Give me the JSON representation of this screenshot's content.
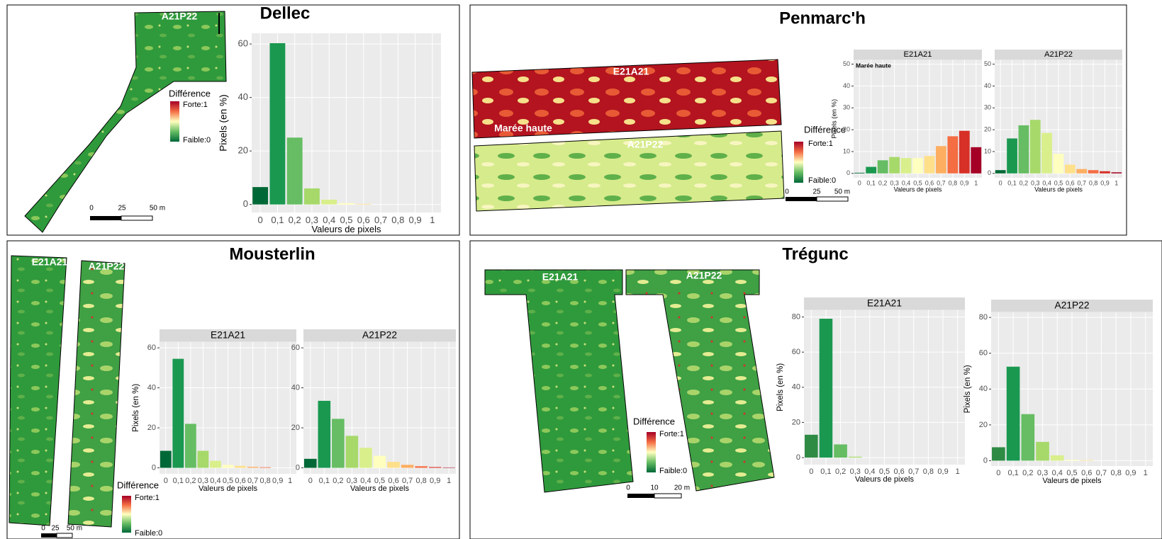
{
  "panels": [
    {
      "title": "Dellec",
      "maps": [
        {
          "label": "A21P22"
        }
      ],
      "legend": {
        "title": "Différence",
        "high": "Forte:1",
        "low": "Faible:0"
      },
      "scale": [
        "0",
        "25",
        "50 m"
      ]
    },
    {
      "title": "Penmarc'h",
      "maps": [
        {
          "label": "E21A21",
          "note": "Marée haute"
        },
        {
          "label": "A21P22"
        }
      ],
      "legend": {
        "title": "Différence",
        "high": "Forte:1",
        "low": "Faible:0"
      },
      "scale": [
        "0",
        "25",
        "50 m"
      ]
    },
    {
      "title": "Mousterlin",
      "maps": [
        {
          "label": "E21A21"
        },
        {
          "label": "A21P22"
        }
      ],
      "legend": {
        "title": "Différence",
        "high": "Forte:1",
        "low": "Faible:0"
      },
      "scale": [
        "0",
        "25",
        "50 m"
      ]
    },
    {
      "title": "Trégunc",
      "maps": [
        {
          "label": "E21A21"
        },
        {
          "label": "A21P22"
        }
      ],
      "legend": {
        "title": "Différence",
        "high": "Forte:1",
        "low": "Faible:0"
      },
      "scale": [
        "0",
        "10",
        "20 m"
      ]
    }
  ],
  "chart_data": [
    {
      "type": "bar",
      "x_label": "Valeurs de pixels",
      "y_label": "Pixels (en %)",
      "categories": [
        "0",
        "0,1",
        "0,2",
        "0,3",
        "0,4",
        "0,5",
        "0,6",
        "0,7",
        "0,8",
        "0,9",
        "1"
      ],
      "values": [
        6.5,
        60.3,
        25,
        6,
        1.8,
        0.5,
        0.2,
        0,
        0,
        0,
        0
      ],
      "colors": [
        "#006837",
        "#1a9850",
        "#66bd63",
        "#a6d96a",
        "#d9ef8b",
        "#ffffbf",
        "#fee08b",
        "#fdae61",
        "#f46d43",
        "#d73027",
        "#a50026"
      ],
      "ylim": [
        -3,
        64
      ],
      "yticks": [
        0,
        20,
        40,
        60
      ],
      "grid": true
    },
    {
      "type": "bar",
      "subtitle": "E21A21",
      "annotation": "Marée haute",
      "x_label": "Valeurs de pixels",
      "y_label": "Pixels (en %)",
      "categories": [
        "0",
        "0,1",
        "0,2",
        "0,3",
        "0,4",
        "0,5",
        "0,6",
        "0,7",
        "0,8",
        "0,9",
        "1"
      ],
      "values": [
        0.3,
        3,
        6,
        7.5,
        7,
        7,
        8,
        12.5,
        17,
        19.5,
        12
      ],
      "colors": [
        "#006837",
        "#1a9850",
        "#66bd63",
        "#a6d96a",
        "#d9ef8b",
        "#ffffbf",
        "#fee08b",
        "#fdae61",
        "#f46d43",
        "#d73027",
        "#a50026"
      ],
      "ylim": [
        -2,
        52
      ],
      "yticks": [
        0,
        10,
        20,
        30,
        40,
        50
      ],
      "grid": true
    },
    {
      "type": "bar",
      "subtitle": "A21P22",
      "x_label": "Valeurs de pixels",
      "categories": [
        "0",
        "0,1",
        "0,2",
        "0,3",
        "0,4",
        "0,5",
        "0,6",
        "0,7",
        "0,8",
        "0,9",
        "1"
      ],
      "values": [
        1.5,
        16,
        22,
        24.5,
        18.5,
        9,
        4,
        2,
        1.5,
        1,
        0.5
      ],
      "colors": [
        "#006837",
        "#1a9850",
        "#66bd63",
        "#a6d96a",
        "#d9ef8b",
        "#ffffbf",
        "#fee08b",
        "#fdae61",
        "#f46d43",
        "#d73027",
        "#a50026"
      ],
      "ylim": [
        -2,
        52
      ],
      "yticks": [
        0,
        10,
        20,
        30,
        40,
        50
      ],
      "grid": true
    },
    {
      "type": "bar",
      "subtitle": "E21A21",
      "x_label": "Valeurs de pixels",
      "y_label": "Pixels (en %)",
      "categories": [
        "0",
        "0,1",
        "0,2",
        "0,3",
        "0,4",
        "0,5",
        "0,6",
        "0,7",
        "0,8",
        "0,9",
        "1"
      ],
      "values": [
        8.5,
        54.5,
        22,
        8.5,
        3.5,
        1.5,
        1,
        0.5,
        0.3,
        0,
        0
      ],
      "colors": [
        "#006837",
        "#1a9850",
        "#66bd63",
        "#a6d96a",
        "#d9ef8b",
        "#ffffbf",
        "#fee08b",
        "#fdae61",
        "#f46d43",
        "#d73027",
        "#a50026"
      ],
      "ylim": [
        -3,
        63
      ],
      "yticks": [
        0,
        20,
        40,
        60
      ],
      "grid": true
    },
    {
      "type": "bar",
      "subtitle": "A21P22",
      "x_label": "Valeurs de pixels",
      "categories": [
        "0",
        "0,1",
        "0,2",
        "0,3",
        "0,4",
        "0,5",
        "0,6",
        "0,7",
        "0,8",
        "0,9",
        "1"
      ],
      "values": [
        4.5,
        33.5,
        24.5,
        16,
        10,
        6,
        3,
        1.5,
        0.8,
        0.4,
        0.2
      ],
      "colors": [
        "#006837",
        "#1a9850",
        "#66bd63",
        "#a6d96a",
        "#d9ef8b",
        "#ffffbf",
        "#fee08b",
        "#fdae61",
        "#f46d43",
        "#d73027",
        "#a50026"
      ],
      "ylim": [
        -3,
        63
      ],
      "yticks": [
        0,
        20,
        40,
        60
      ],
      "grid": true
    },
    {
      "type": "bar",
      "subtitle": "E21A21",
      "x_label": "Valeurs de pixels",
      "y_label": "Pixels (en %)",
      "categories": [
        "0",
        "0,1",
        "0,2",
        "0,3",
        "0,4",
        "0,5",
        "0,6",
        "0,7",
        "0,8",
        "0,9",
        "1"
      ],
      "values": [
        13,
        79,
        7.5,
        0.5,
        0,
        0,
        0,
        0,
        0,
        0,
        0
      ],
      "colors": [
        "#2e8b44",
        "#1a9850",
        "#66bd63",
        "#a6d96a",
        "#d9ef8b",
        "#ffffbf",
        "#fee08b",
        "#fdae61",
        "#f46d43",
        "#d73027",
        "#a50026"
      ],
      "ylim": [
        -4,
        84
      ],
      "yticks": [
        0,
        20,
        40,
        60,
        80
      ],
      "grid": true
    },
    {
      "type": "bar",
      "subtitle": "A21P22",
      "x_label": "Valeurs de pixels",
      "y_label": "Pixels (en %)",
      "categories": [
        "0",
        "0,1",
        "0,2",
        "0,3",
        "0,4",
        "0,5",
        "0,6",
        "0,7",
        "0,8",
        "0,9",
        "1"
      ],
      "values": [
        7.5,
        52.5,
        26,
        10.5,
        3,
        0.5,
        0.3,
        0,
        0,
        0,
        0
      ],
      "colors": [
        "#2e8b44",
        "#1a9850",
        "#66bd63",
        "#a6d96a",
        "#d9ef8b",
        "#ffffbf",
        "#fee08b",
        "#fdae61",
        "#f46d43",
        "#d73027",
        "#a50026"
      ],
      "ylim": [
        -3,
        83
      ],
      "yticks": [
        0,
        20,
        40,
        60,
        80
      ],
      "grid": true
    }
  ]
}
